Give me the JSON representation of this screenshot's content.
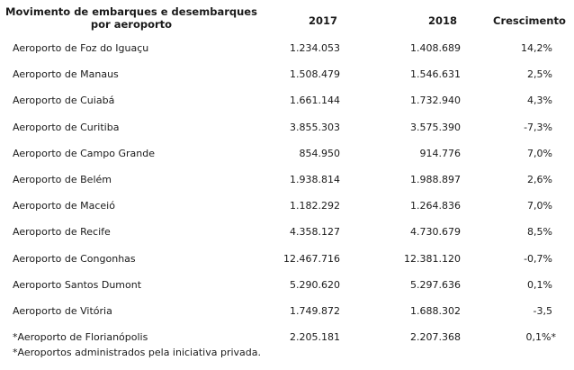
{
  "table": {
    "headers": {
      "airport_line1": "Movimento de embarques e desembarques",
      "airport_line2": "por aeroporto",
      "year_2017": "2017",
      "year_2018": "2018",
      "growth": "Crescimento"
    },
    "rows": [
      {
        "name": "Aeroporto de Foz do Iguaçu",
        "v2017": "1.234.053",
        "v2018": "1.408.689",
        "growth": "14,2%"
      },
      {
        "name": "Aeroporto de Manaus",
        "v2017": "1.508.479",
        "v2018": "1.546.631",
        "growth": "2,5%"
      },
      {
        "name": "Aeroporto de Cuiabá",
        "v2017": "1.661.144",
        "v2018": "1.732.940",
        "growth": "4,3%"
      },
      {
        "name": "Aeroporto de Curitiba",
        "v2017": "3.855.303",
        "v2018": "3.575.390",
        "growth": "-7,3%"
      },
      {
        "name": "Aeroporto de Campo Grande",
        "v2017": "854.950",
        "v2018": "914.776",
        "growth": "7,0%"
      },
      {
        "name": "Aeroporto de Belém",
        "v2017": "1.938.814",
        "v2018": "1.988.897",
        "growth": "2,6%"
      },
      {
        "name": "Aeroporto de Maceió",
        "v2017": "1.182.292",
        "v2018": "1.264.836",
        "growth": "7,0%"
      },
      {
        "name": "Aeroporto de Recife",
        "v2017": "4.358.127",
        "v2018": "4.730.679",
        "growth": "8,5%"
      },
      {
        "name": "Aeroporto de Congonhas",
        "v2017": "12.467.716",
        "v2018": "12.381.120",
        "growth": "-0,7%"
      },
      {
        "name": "Aeroporto Santos Dumont",
        "v2017": "5.290.620",
        "v2018": "5.297.636",
        "growth": "0,1%"
      },
      {
        "name": "Aeroporto de Vitória",
        "v2017": "1.749.872",
        "v2018": "1.688.302",
        "growth": "-3,5"
      },
      {
        "name": "*Aeroporto de Florianópolis",
        "v2017": "2.205.181",
        "v2018": "2.207.368",
        "growth": "0,1%*"
      }
    ]
  },
  "footnote": "*Aeroportos administrados pela iniciativa privada."
}
